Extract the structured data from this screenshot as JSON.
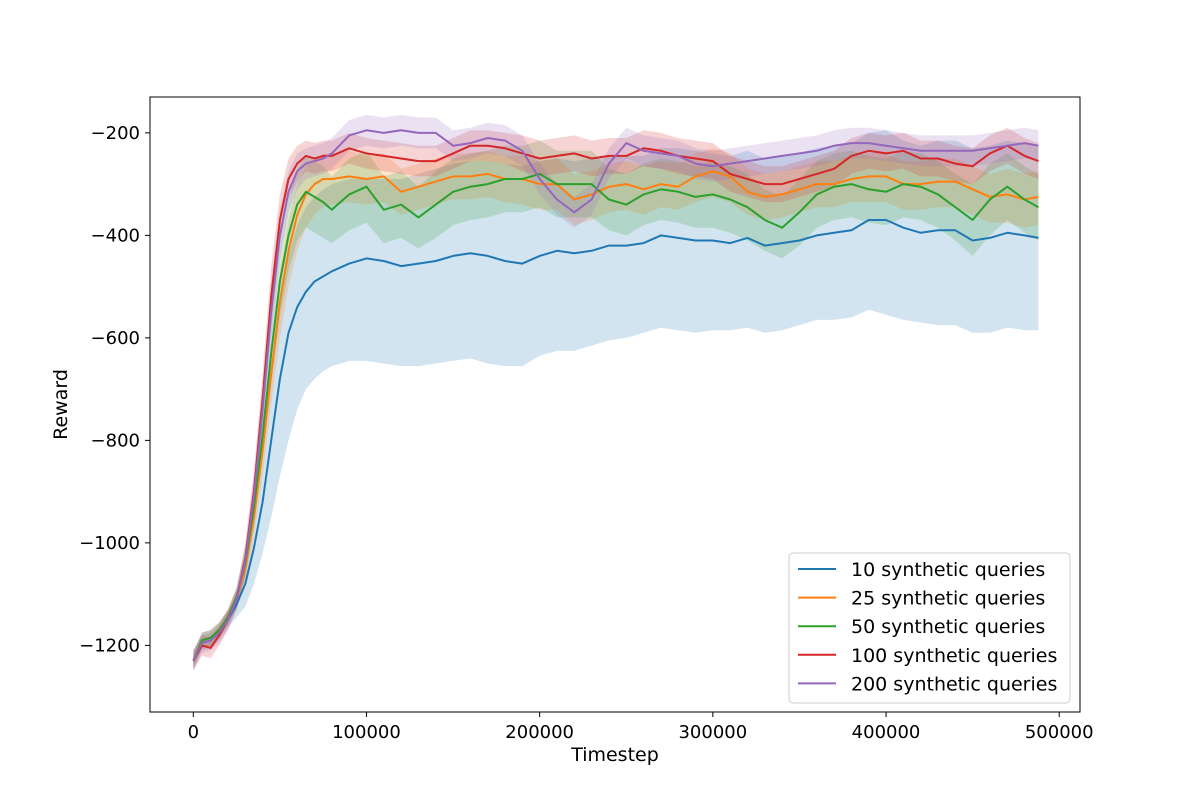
{
  "chart_data": {
    "type": "line",
    "title": "",
    "xlabel": "Timestep",
    "ylabel": "Reward",
    "xlim": [
      -25000,
      512000
    ],
    "ylim": [
      -1330,
      -130
    ],
    "xticks": [
      0,
      100000,
      200000,
      300000,
      400000,
      500000
    ],
    "xtick_labels": [
      "0",
      "100000",
      "200000",
      "300000",
      "400000",
      "500000"
    ],
    "yticks": [
      -1200,
      -1000,
      -800,
      -600,
      -400,
      -200
    ],
    "ytick_labels": [
      "−1200",
      "−1000",
      "−800",
      "−600",
      "−400",
      "−200"
    ],
    "grid": false,
    "legend_position": "lower-right",
    "x": [
      0,
      5000,
      10000,
      15000,
      20000,
      25000,
      30000,
      35000,
      40000,
      45000,
      50000,
      55000,
      60000,
      65000,
      70000,
      75000,
      80000,
      90000,
      100000,
      110000,
      120000,
      130000,
      140000,
      150000,
      160000,
      170000,
      180000,
      190000,
      200000,
      210000,
      220000,
      230000,
      240000,
      250000,
      260000,
      270000,
      280000,
      290000,
      300000,
      310000,
      320000,
      330000,
      340000,
      350000,
      360000,
      370000,
      380000,
      390000,
      400000,
      410000,
      420000,
      430000,
      440000,
      450000,
      460000,
      470000,
      480000,
      488000
    ],
    "series": [
      {
        "name": "10 synthetic queries",
        "color": "#1f77b4",
        "values": [
          -1230,
          -1195,
          -1190,
          -1175,
          -1150,
          -1120,
          -1080,
          -1010,
          -920,
          -800,
          -680,
          -590,
          -540,
          -510,
          -490,
          -480,
          -470,
          -455,
          -445,
          -450,
          -460,
          -455,
          -450,
          -440,
          -435,
          -440,
          -450,
          -455,
          -440,
          -430,
          -435,
          -430,
          -420,
          -420,
          -415,
          -400,
          -405,
          -410,
          -410,
          -415,
          -405,
          -420,
          -415,
          -410,
          -400,
          -395,
          -390,
          -370,
          -370,
          -385,
          -395,
          -390,
          -390,
          -410,
          -405,
          -395,
          -400,
          -405
        ],
        "lower": [
          -1245,
          -1210,
          -1205,
          -1190,
          -1165,
          -1145,
          -1125,
          -1080,
          -1020,
          -950,
          -870,
          -800,
          -740,
          -700,
          -680,
          -665,
          -655,
          -645,
          -645,
          -650,
          -655,
          -655,
          -650,
          -645,
          -640,
          -650,
          -655,
          -655,
          -635,
          -625,
          -625,
          -615,
          -605,
          -600,
          -590,
          -580,
          -585,
          -590,
          -585,
          -585,
          -580,
          -590,
          -585,
          -575,
          -565,
          -565,
          -560,
          -545,
          -555,
          -565,
          -570,
          -575,
          -575,
          -590,
          -590,
          -580,
          -585,
          -585
        ],
        "upper": [
          -1210,
          -1180,
          -1175,
          -1160,
          -1135,
          -1100,
          -1050,
          -960,
          -840,
          -680,
          -540,
          -440,
          -380,
          -345,
          -325,
          -310,
          -300,
          -290,
          -290,
          -290,
          -290,
          -280,
          -270,
          -260,
          -255,
          -255,
          -260,
          -265,
          -255,
          -250,
          -255,
          -250,
          -245,
          -245,
          -245,
          -230,
          -230,
          -235,
          -240,
          -245,
          -235,
          -250,
          -245,
          -240,
          -230,
          -225,
          -220,
          -200,
          -195,
          -215,
          -225,
          -215,
          -215,
          -230,
          -225,
          -215,
          -220,
          -225
        ]
      },
      {
        "name": "25 synthetic queries",
        "color": "#ff7f0e",
        "values": [
          -1230,
          -1190,
          -1185,
          -1170,
          -1145,
          -1110,
          -1050,
          -950,
          -820,
          -670,
          -530,
          -430,
          -360,
          -320,
          -300,
          -290,
          -290,
          -285,
          -290,
          -285,
          -315,
          -305,
          -295,
          -285,
          -285,
          -280,
          -290,
          -290,
          -300,
          -300,
          -330,
          -320,
          -305,
          -300,
          -310,
          -300,
          -305,
          -285,
          -275,
          -285,
          -315,
          -325,
          -320,
          -310,
          -300,
          -300,
          -290,
          -285,
          -285,
          -300,
          -300,
          -295,
          -295,
          -310,
          -325,
          -320,
          -330,
          -325
        ],
        "lower": [
          -1245,
          -1205,
          -1200,
          -1185,
          -1160,
          -1130,
          -1080,
          -990,
          -870,
          -730,
          -600,
          -500,
          -430,
          -385,
          -360,
          -345,
          -340,
          -335,
          -340,
          -335,
          -360,
          -350,
          -340,
          -330,
          -330,
          -325,
          -335,
          -340,
          -350,
          -350,
          -380,
          -370,
          -355,
          -350,
          -360,
          -345,
          -350,
          -335,
          -325,
          -335,
          -360,
          -370,
          -365,
          -355,
          -345,
          -345,
          -335,
          -335,
          -335,
          -350,
          -350,
          -345,
          -345,
          -360,
          -375,
          -375,
          -385,
          -380
        ],
        "upper": [
          -1215,
          -1175,
          -1170,
          -1155,
          -1130,
          -1090,
          -1020,
          -910,
          -770,
          -610,
          -470,
          -370,
          -300,
          -265,
          -250,
          -240,
          -240,
          -235,
          -245,
          -240,
          -270,
          -260,
          -250,
          -240,
          -240,
          -235,
          -245,
          -245,
          -255,
          -250,
          -280,
          -275,
          -260,
          -255,
          -265,
          -255,
          -260,
          -240,
          -230,
          -240,
          -270,
          -280,
          -275,
          -265,
          -255,
          -255,
          -245,
          -240,
          -240,
          -255,
          -255,
          -250,
          -250,
          -265,
          -280,
          -270,
          -280,
          -275
        ]
      },
      {
        "name": "50 synthetic queries",
        "color": "#2ca02c",
        "values": [
          -1230,
          -1190,
          -1185,
          -1170,
          -1145,
          -1105,
          -1040,
          -930,
          -790,
          -630,
          -490,
          -400,
          -340,
          -315,
          -325,
          -335,
          -350,
          -320,
          -305,
          -350,
          -340,
          -365,
          -340,
          -315,
          -305,
          -300,
          -290,
          -290,
          -280,
          -300,
          -300,
          -300,
          -330,
          -340,
          -320,
          -310,
          -315,
          -325,
          -320,
          -330,
          -345,
          -370,
          -385,
          -355,
          -320,
          -305,
          -300,
          -310,
          -315,
          -300,
          -305,
          -320,
          -345,
          -370,
          -330,
          -305,
          -330,
          -345
        ],
        "lower": [
          -1245,
          -1205,
          -1200,
          -1185,
          -1160,
          -1125,
          -1070,
          -970,
          -840,
          -690,
          -560,
          -470,
          -410,
          -385,
          -395,
          -405,
          -415,
          -390,
          -375,
          -415,
          -405,
          -425,
          -405,
          -380,
          -370,
          -365,
          -355,
          -355,
          -345,
          -365,
          -365,
          -365,
          -390,
          -400,
          -380,
          -370,
          -375,
          -385,
          -385,
          -395,
          -410,
          -430,
          -445,
          -420,
          -385,
          -370,
          -365,
          -375,
          -380,
          -365,
          -370,
          -385,
          -410,
          -440,
          -400,
          -370,
          -395,
          -410
        ],
        "upper": [
          -1215,
          -1175,
          -1170,
          -1155,
          -1130,
          -1085,
          -1010,
          -890,
          -740,
          -570,
          -420,
          -330,
          -270,
          -245,
          -255,
          -265,
          -285,
          -250,
          -235,
          -285,
          -275,
          -305,
          -275,
          -250,
          -240,
          -235,
          -225,
          -225,
          -215,
          -235,
          -235,
          -235,
          -270,
          -280,
          -260,
          -250,
          -255,
          -265,
          -255,
          -265,
          -280,
          -310,
          -325,
          -290,
          -255,
          -240,
          -235,
          -245,
          -250,
          -235,
          -240,
          -255,
          -280,
          -300,
          -260,
          -240,
          -265,
          -280
        ]
      },
      {
        "name": "100 synthetic queries",
        "color": "#d62728",
        "values": [
          -1230,
          -1200,
          -1205,
          -1180,
          -1150,
          -1110,
          -1030,
          -900,
          -720,
          -520,
          -370,
          -290,
          -260,
          -245,
          -250,
          -245,
          -245,
          -230,
          -240,
          -245,
          -250,
          -255,
          -255,
          -240,
          -225,
          -225,
          -230,
          -240,
          -250,
          -245,
          -240,
          -250,
          -245,
          -245,
          -230,
          -235,
          -245,
          -250,
          -255,
          -280,
          -290,
          -300,
          -300,
          -290,
          -280,
          -270,
          -245,
          -235,
          -240,
          -235,
          -250,
          -250,
          -260,
          -265,
          -240,
          -225,
          -245,
          -255
        ],
        "lower": [
          -1250,
          -1220,
          -1225,
          -1200,
          -1170,
          -1130,
          -1060,
          -940,
          -770,
          -580,
          -420,
          -330,
          -295,
          -275,
          -280,
          -275,
          -275,
          -260,
          -270,
          -275,
          -280,
          -285,
          -285,
          -270,
          -255,
          -255,
          -260,
          -275,
          -285,
          -280,
          -275,
          -285,
          -280,
          -280,
          -265,
          -270,
          -280,
          -285,
          -290,
          -315,
          -325,
          -335,
          -335,
          -325,
          -315,
          -305,
          -280,
          -270,
          -275,
          -270,
          -285,
          -285,
          -295,
          -300,
          -275,
          -260,
          -280,
          -290
        ],
        "upper": [
          -1210,
          -1180,
          -1185,
          -1160,
          -1130,
          -1090,
          -1000,
          -860,
          -670,
          -460,
          -320,
          -250,
          -225,
          -215,
          -220,
          -215,
          -215,
          -200,
          -210,
          -215,
          -220,
          -225,
          -225,
          -210,
          -195,
          -195,
          -200,
          -205,
          -215,
          -210,
          -205,
          -215,
          -210,
          -210,
          -195,
          -200,
          -210,
          -215,
          -220,
          -245,
          -255,
          -265,
          -265,
          -255,
          -245,
          -235,
          -210,
          -200,
          -205,
          -200,
          -215,
          -215,
          -225,
          -230,
          -205,
          -190,
          -210,
          -220
        ]
      },
      {
        "name": "200 synthetic queries",
        "color": "#9467bd",
        "values": [
          -1230,
          -1195,
          -1190,
          -1175,
          -1150,
          -1110,
          -1035,
          -910,
          -740,
          -550,
          -400,
          -315,
          -275,
          -260,
          -255,
          -250,
          -240,
          -205,
          -195,
          -200,
          -195,
          -200,
          -200,
          -225,
          -220,
          -210,
          -215,
          -235,
          -290,
          -330,
          -355,
          -330,
          -260,
          -220,
          -235,
          -240,
          -245,
          -260,
          -265,
          -260,
          -255,
          -250,
          -245,
          -240,
          -235,
          -225,
          -220,
          -220,
          -225,
          -230,
          -235,
          -235,
          -235,
          -235,
          -230,
          -225,
          -220,
          -225
        ],
        "lower": [
          -1250,
          -1215,
          -1210,
          -1195,
          -1170,
          -1130,
          -1065,
          -950,
          -790,
          -610,
          -450,
          -355,
          -310,
          -290,
          -285,
          -280,
          -270,
          -235,
          -225,
          -230,
          -225,
          -230,
          -230,
          -255,
          -250,
          -240,
          -245,
          -265,
          -320,
          -360,
          -385,
          -360,
          -290,
          -250,
          -265,
          -270,
          -275,
          -290,
          -295,
          -290,
          -285,
          -280,
          -275,
          -270,
          -265,
          -255,
          -250,
          -250,
          -255,
          -260,
          -265,
          -265,
          -265,
          -265,
          -260,
          -255,
          -250,
          -255
        ],
        "upper": [
          -1210,
          -1175,
          -1170,
          -1155,
          -1130,
          -1090,
          -1005,
          -870,
          -690,
          -490,
          -350,
          -275,
          -240,
          -230,
          -225,
          -220,
          -210,
          -175,
          -165,
          -170,
          -165,
          -170,
          -170,
          -195,
          -190,
          -180,
          -185,
          -205,
          -260,
          -300,
          -325,
          -300,
          -230,
          -190,
          -205,
          -210,
          -215,
          -230,
          -235,
          -230,
          -225,
          -220,
          -215,
          -210,
          -205,
          -195,
          -190,
          -190,
          -195,
          -200,
          -205,
          -205,
          -205,
          -205,
          -200,
          -195,
          -190,
          -195
        ]
      }
    ]
  }
}
